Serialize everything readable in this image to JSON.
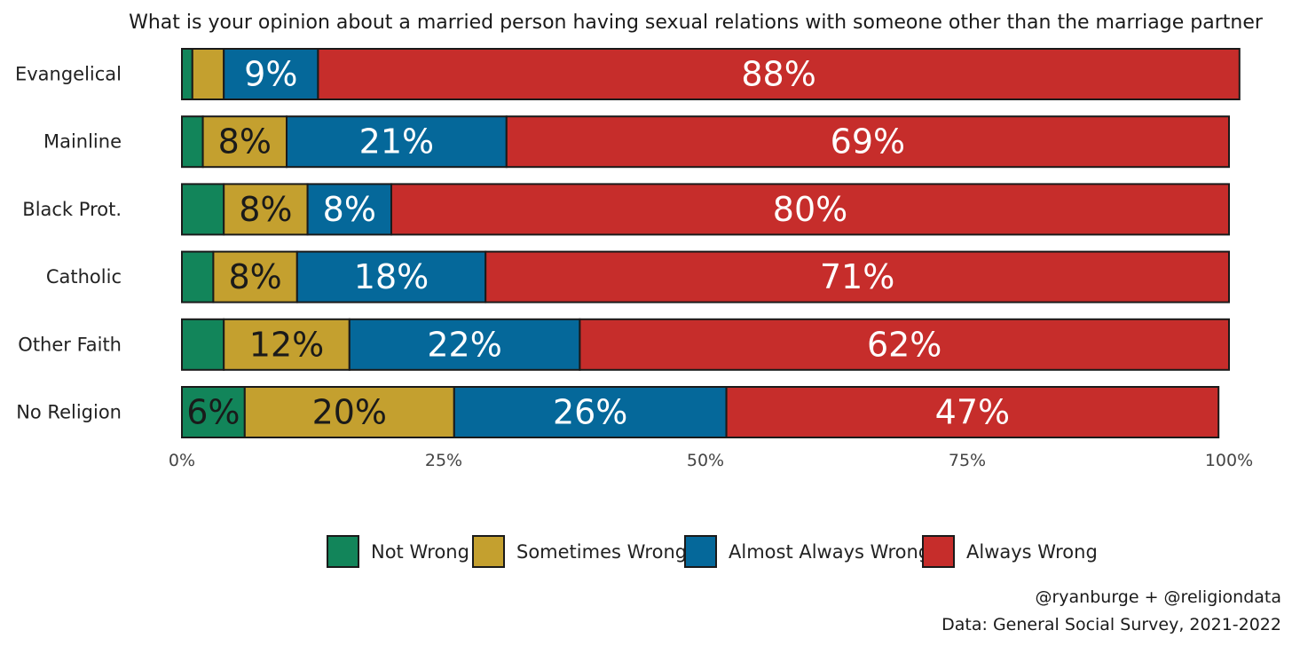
{
  "chart_data": {
    "type": "bar",
    "orientation": "horizontal",
    "stacked": true,
    "title": "What is your opinion about a married person having sexual relations with someone other than the marriage partner",
    "categories": [
      "Evangelical",
      "Mainline",
      "Black Prot.",
      "Catholic",
      "Other Faith",
      "No Religion"
    ],
    "series": [
      {
        "name": "Not Wrong",
        "color": "#12855a",
        "values": [
          1,
          2,
          4,
          3,
          4,
          6
        ],
        "labels": [
          "",
          "",
          "",
          "",
          "",
          "6%"
        ]
      },
      {
        "name": "Sometimes Wrong",
        "color": "#c4a02f",
        "values": [
          3,
          8,
          8,
          8,
          12,
          20
        ],
        "labels": [
          "",
          "8%",
          "8%",
          "8%",
          "12%",
          "20%"
        ]
      },
      {
        "name": "Almost Always Wrong",
        "color": "#05689a",
        "values": [
          9,
          21,
          8,
          18,
          22,
          26
        ],
        "labels": [
          "9%",
          "21%",
          "8%",
          "18%",
          "22%",
          "26%"
        ]
      },
      {
        "name": "Always Wrong",
        "color": "#c62d2b",
        "values": [
          88,
          69,
          80,
          71,
          62,
          47
        ],
        "labels": [
          "88%",
          "69%",
          "80%",
          "71%",
          "62%",
          "47%"
        ]
      }
    ],
    "xlim": [
      0,
      100
    ],
    "x_ticks": [
      "0%",
      "25%",
      "50%",
      "75%",
      "100%"
    ],
    "grid": false,
    "legend_position": "bottom"
  },
  "caption": {
    "line1": "@ryanburge + @religiondata",
    "line2": "Data: General Social Survey, 2021-2022"
  }
}
